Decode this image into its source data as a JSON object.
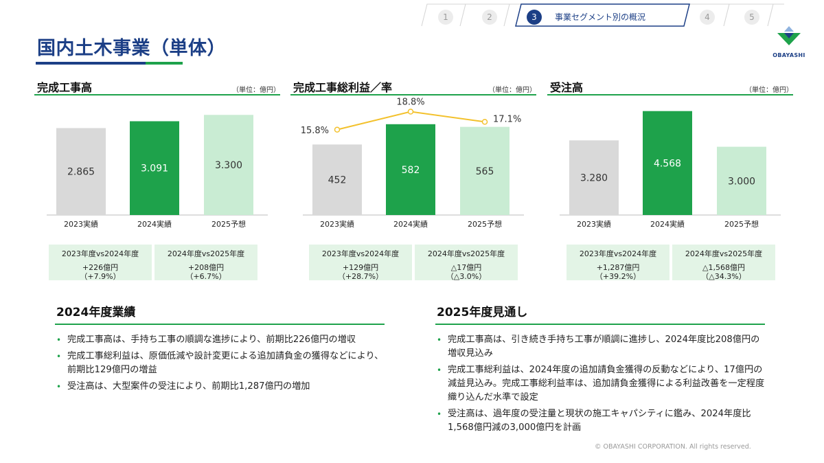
{
  "nav": {
    "steps": [
      "1",
      "2",
      "3",
      "4",
      "5"
    ],
    "active_label": "事業セグメント別の概況"
  },
  "page": {
    "title": "国内土木事業（単体）"
  },
  "logo": {
    "text": "OBAYASHI"
  },
  "colors": {
    "navy": "#1c3f86",
    "green": "#1ea24b",
    "gray_bar": "#d9d9d9",
    "light_green_bar": "#c9ecd3",
    "line": "#f3c12c",
    "cmp_bg": "#e3f4e6"
  },
  "panels": [
    {
      "title": "完成工事高",
      "unit": "（単位：億円）",
      "comparisons": [
        {
          "header": "2023年度vs2024年度",
          "line1": "+226億円",
          "line2": "（+7.9%）"
        },
        {
          "header": "2024年度vs2025年度",
          "line1": "+208億円",
          "line2": "（+6.7%）"
        }
      ]
    },
    {
      "title": "完成工事総利益／率",
      "unit": "（単位：億円）",
      "comparisons": [
        {
          "header": "2023年度vs2024年度",
          "line1": "+129億円",
          "line2": "（+28.7%）"
        },
        {
          "header": "2024年度vs2025年度",
          "line1": "△17億円",
          "line2": "（△3.0%）"
        }
      ]
    },
    {
      "title": "受注高",
      "unit": "（単位：億円）",
      "comparisons": [
        {
          "header": "2023年度vs2024年度",
          "line1": "+1,287億円",
          "line2": "（+39.2%）"
        },
        {
          "header": "2024年度vs2025年度",
          "line1": "△1,568億円",
          "line2": "（△34.3%）"
        }
      ]
    }
  ],
  "chart_data": [
    {
      "type": "bar",
      "title": "完成工事高",
      "categories": [
        "2023実績",
        "2024実績",
        "2025予想"
      ],
      "values": [
        2865,
        3091,
        3300
      ],
      "labels": [
        "2.865",
        "3.091",
        "3.300"
      ],
      "ylim": [
        0,
        3600
      ]
    },
    {
      "type": "bar",
      "title": "完成工事総利益／率",
      "categories": [
        "2023実績",
        "2024実績",
        "2025予想"
      ],
      "values": [
        452,
        582,
        565
      ],
      "labels": [
        "452",
        "582",
        "565"
      ],
      "ylim": [
        0,
        700
      ],
      "line_series": {
        "values": [
          15.8,
          18.8,
          17.1
        ],
        "labels": [
          "15.8%",
          "18.8%",
          "17.1%"
        ],
        "ylim": [
          12,
          20
        ]
      }
    },
    {
      "type": "bar",
      "title": "受注高",
      "categories": [
        "2023実績",
        "2024実績",
        "2025予想"
      ],
      "values": [
        3280,
        4568,
        3000
      ],
      "labels": [
        "3.280",
        "4.568",
        "3.000"
      ],
      "ylim": [
        0,
        4800
      ]
    }
  ],
  "sections": [
    {
      "title": "2024年度業績",
      "bullets": [
        "完成工事高は、手持ち工事の順調な進捗により、前期比226億円の増収",
        "完成工事総利益は、原価低減や設計変更による追加請負金の獲得などにより、前期比129億円の増益",
        "受注高は、大型案件の受注により、前期比1,287億円の増加"
      ]
    },
    {
      "title": "2025年度見通し",
      "bullets": [
        "完成工事高は、引き続き手持ち工事が順調に進捗し、2024年度比208億円の増収見込み",
        "完成工事総利益は、2024年度の追加請負金獲得の反動などにより、17億円の減益見込み。完成工事総利益率は、追加請負金獲得による利益改善を一定程度織り込んだ水準で設定",
        "受注高は、過年度の受注量と現状の施工キャパシティに鑑み、2024年度比1,568億円減の3,000億円を計画"
      ]
    }
  ],
  "footer": {
    "copyright": "© OBAYASHI CORPORATION. All rights reserved."
  }
}
